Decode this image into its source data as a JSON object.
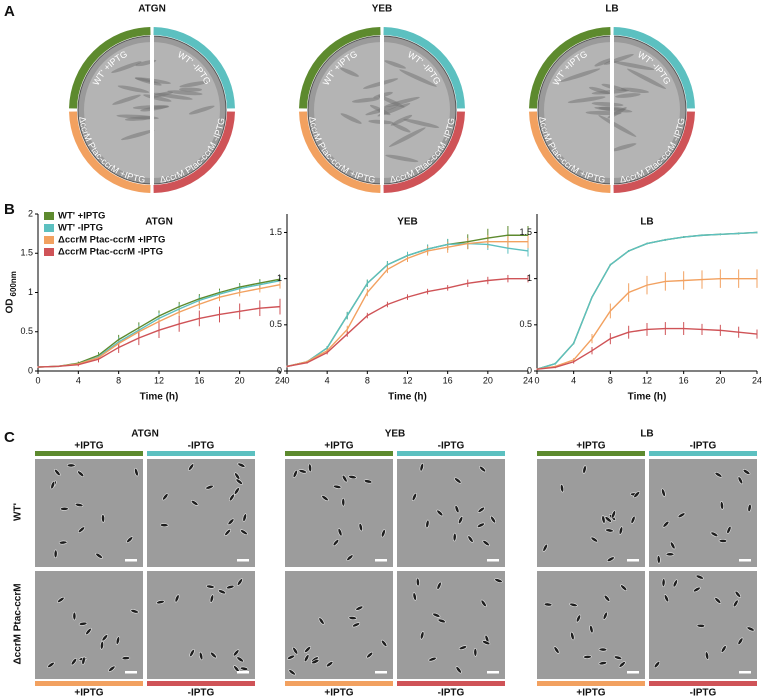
{
  "panel_labels": [
    "A",
    "B",
    "C"
  ],
  "plates": [
    {
      "title": "ATGN",
      "labels": [
        "WT' +IPTG",
        "WT' -IPTG",
        "ΔccrM Ptac-ccrM +IPTG",
        "ΔccrM Ptac-ccrM -IPTG"
      ]
    },
    {
      "title": "YEB",
      "labels": [
        "WT' +IPTG",
        "WT' -IPTG",
        "ΔccrM Ptac-ccrM +IPTG",
        "ΔccrM Ptac-ccrM -IPTG"
      ]
    },
    {
      "title": "LB",
      "labels": [
        "WT' +IPTG",
        "WT' -IPTG",
        "ΔccrM Ptac-ccrM +IPTG",
        "ΔccrM Ptac-ccrM -IPTG"
      ]
    }
  ],
  "chart_data": [
    {
      "type": "line",
      "title": "ATGN",
      "xlabel": "Time (h)",
      "ylabel": "OD",
      "ylabel_subscript": "600nm",
      "legend": "upper-left",
      "x": [
        0,
        2,
        4,
        6,
        8,
        10,
        12,
        14,
        16,
        18,
        20,
        22,
        24
      ],
      "xlim": [
        0,
        24
      ],
      "xticks": [
        0,
        4,
        8,
        12,
        16,
        20,
        24
      ],
      "ylim": [
        0,
        2
      ],
      "yticks": [
        0,
        0.5,
        1,
        1.5,
        2
      ],
      "series": [
        {
          "name": "WT' +IPTG",
          "color": "#5d8a2e",
          "values": [
            0.05,
            0.06,
            0.1,
            0.2,
            0.4,
            0.55,
            0.7,
            0.82,
            0.92,
            1.0,
            1.07,
            1.12,
            1.17
          ],
          "errors": [
            0.01,
            0.01,
            0.02,
            0.04,
            0.06,
            0.07,
            0.07,
            0.06,
            0.06,
            0.05,
            0.05,
            0.05,
            0.05
          ]
        },
        {
          "name": "WT' -IPTG",
          "color": "#5cc0c0",
          "values": [
            0.05,
            0.06,
            0.09,
            0.18,
            0.37,
            0.52,
            0.67,
            0.79,
            0.9,
            0.98,
            1.05,
            1.1,
            1.15
          ],
          "errors": [
            0.01,
            0.01,
            0.02,
            0.04,
            0.06,
            0.07,
            0.07,
            0.06,
            0.06,
            0.05,
            0.05,
            0.05,
            0.05
          ]
        },
        {
          "name": "ΔccrM Ptac-ccrM +IPTG",
          "color": "#f2a160",
          "values": [
            0.05,
            0.06,
            0.09,
            0.17,
            0.35,
            0.5,
            0.63,
            0.75,
            0.85,
            0.94,
            1.0,
            1.05,
            1.1
          ],
          "errors": [
            0.01,
            0.01,
            0.02,
            0.04,
            0.06,
            0.07,
            0.07,
            0.06,
            0.06,
            0.05,
            0.05,
            0.05,
            0.05
          ]
        },
        {
          "name": "ΔccrM Ptac-ccrM -IPTG",
          "color": "#cf5357",
          "values": [
            0.05,
            0.06,
            0.08,
            0.15,
            0.3,
            0.42,
            0.52,
            0.6,
            0.67,
            0.72,
            0.76,
            0.8,
            0.82
          ],
          "errors": [
            0.01,
            0.01,
            0.02,
            0.04,
            0.07,
            0.09,
            0.1,
            0.1,
            0.1,
            0.1,
            0.1,
            0.1,
            0.1
          ]
        }
      ]
    },
    {
      "type": "line",
      "title": "YEB",
      "xlabel": "Time (h)",
      "x": [
        0,
        2,
        4,
        6,
        8,
        10,
        12,
        14,
        16,
        18,
        20,
        22,
        24
      ],
      "xlim": [
        0,
        24
      ],
      "xticks": [
        0,
        4,
        8,
        12,
        16,
        20,
        24
      ],
      "ylim": [
        0,
        1.7
      ],
      "yticks": [
        0,
        0.5,
        1,
        1.5
      ],
      "series": [
        {
          "color": "#5d8a2e",
          "values": [
            0.05,
            0.1,
            0.25,
            0.6,
            0.95,
            1.15,
            1.25,
            1.32,
            1.37,
            1.4,
            1.44,
            1.47,
            1.47
          ],
          "errors": [
            0.01,
            0.01,
            0.02,
            0.04,
            0.04,
            0.04,
            0.04,
            0.05,
            0.06,
            0.08,
            0.1,
            0.1,
            0.1
          ]
        },
        {
          "color": "#5cc0c0",
          "values": [
            0.05,
            0.1,
            0.25,
            0.6,
            0.95,
            1.15,
            1.25,
            1.32,
            1.37,
            1.38,
            1.37,
            1.33,
            1.3
          ],
          "errors": [
            0.01,
            0.01,
            0.02,
            0.04,
            0.04,
            0.04,
            0.04,
            0.05,
            0.06,
            0.06,
            0.06,
            0.06,
            0.06
          ]
        },
        {
          "color": "#f2a160",
          "values": [
            0.05,
            0.1,
            0.22,
            0.45,
            0.85,
            1.1,
            1.22,
            1.3,
            1.34,
            1.38,
            1.4,
            1.4,
            1.4
          ],
          "errors": [
            0.01,
            0.01,
            0.02,
            0.04,
            0.04,
            0.04,
            0.04,
            0.05,
            0.06,
            0.06,
            0.07,
            0.07,
            0.07
          ]
        },
        {
          "color": "#cf5357",
          "values": [
            0.05,
            0.09,
            0.2,
            0.4,
            0.6,
            0.72,
            0.8,
            0.86,
            0.9,
            0.95,
            0.98,
            1.0,
            1.0
          ],
          "errors": [
            0.01,
            0.01,
            0.02,
            0.03,
            0.03,
            0.03,
            0.03,
            0.03,
            0.03,
            0.04,
            0.04,
            0.04,
            0.04
          ]
        }
      ]
    },
    {
      "type": "line",
      "title": "LB",
      "xlabel": "Time (h)",
      "x": [
        0,
        2,
        4,
        6,
        8,
        10,
        12,
        14,
        16,
        18,
        20,
        22,
        24
      ],
      "xlim": [
        0,
        24
      ],
      "xticks": [
        0,
        4,
        8,
        12,
        16,
        20,
        24
      ],
      "ylim": [
        0,
        1.7
      ],
      "yticks": [
        0,
        0.5,
        1,
        1.5
      ],
      "series": [
        {
          "color": "#5d8a2e",
          "values": [
            0.02,
            0.08,
            0.3,
            0.8,
            1.15,
            1.3,
            1.38,
            1.42,
            1.45,
            1.47,
            1.48,
            1.49,
            1.5
          ],
          "errors": [
            0.01,
            0.01,
            0.01,
            0.01,
            0.01,
            0.01,
            0.01,
            0.01,
            0.01,
            0.01,
            0.01,
            0.01,
            0.01
          ]
        },
        {
          "color": "#5cc0c0",
          "values": [
            0.02,
            0.08,
            0.3,
            0.8,
            1.15,
            1.3,
            1.38,
            1.42,
            1.45,
            1.47,
            1.48,
            1.49,
            1.5
          ],
          "errors": [
            0.01,
            0.01,
            0.01,
            0.01,
            0.01,
            0.01,
            0.01,
            0.01,
            0.01,
            0.01,
            0.01,
            0.01,
            0.01
          ]
        },
        {
          "color": "#f2a160",
          "values": [
            0.02,
            0.05,
            0.12,
            0.35,
            0.65,
            0.85,
            0.93,
            0.97,
            0.98,
            0.99,
            1.0,
            1.0,
            1.0
          ],
          "errors": [
            0.01,
            0.01,
            0.02,
            0.05,
            0.08,
            0.1,
            0.1,
            0.1,
            0.1,
            0.1,
            0.1,
            0.1,
            0.1
          ]
        },
        {
          "color": "#cf5357",
          "values": [
            0.02,
            0.04,
            0.1,
            0.22,
            0.35,
            0.42,
            0.45,
            0.46,
            0.46,
            0.45,
            0.44,
            0.42,
            0.4
          ],
          "errors": [
            0.01,
            0.01,
            0.02,
            0.04,
            0.06,
            0.07,
            0.07,
            0.07,
            0.07,
            0.06,
            0.06,
            0.06,
            0.05
          ]
        }
      ]
    }
  ],
  "micrographs": {
    "row_labels": [
      "WT'",
      "ΔccrM Ptac-ccrM"
    ],
    "groups": [
      {
        "title": "ATGN",
        "top": [
          "+IPTG",
          "-IPTG"
        ],
        "bottom": [
          "+IPTG",
          "-IPTG"
        ]
      },
      {
        "title": "YEB",
        "top": [
          "+IPTG",
          "-IPTG"
        ],
        "bottom": [
          "+IPTG",
          "-IPTG"
        ]
      },
      {
        "title": "LB",
        "top": [
          "+IPTG",
          "-IPTG"
        ],
        "bottom": [
          "+IPTG",
          "-IPTG"
        ]
      }
    ]
  }
}
